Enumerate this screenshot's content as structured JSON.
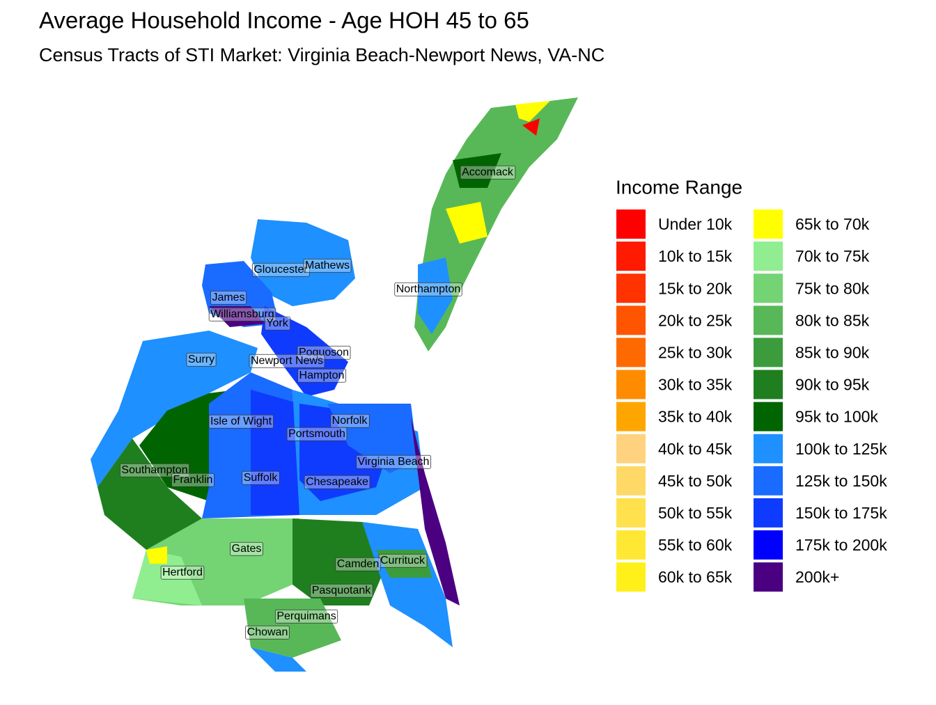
{
  "title": "Average Household Income - Age HOH 45 to 65",
  "subtitle": "Census Tracts of STI Market: Virginia Beach-Newport News, VA-NC",
  "legend": {
    "title": "Income Range",
    "items": [
      {
        "label": "Under 10k",
        "color": "#ff0000"
      },
      {
        "label": "10k to 15k",
        "color": "#ff1a00"
      },
      {
        "label": "15k to 20k",
        "color": "#ff3300"
      },
      {
        "label": "20k to 25k",
        "color": "#ff5500"
      },
      {
        "label": "25k to 30k",
        "color": "#ff6a00"
      },
      {
        "label": "30k to 35k",
        "color": "#ff8c00"
      },
      {
        "label": "35k to 40k",
        "color": "#ffa500"
      },
      {
        "label": "40k to 45k",
        "color": "#ffd27f"
      },
      {
        "label": "45k to 50k",
        "color": "#ffd966"
      },
      {
        "label": "50k to 55k",
        "color": "#ffe14d"
      },
      {
        "label": "55k to 60k",
        "color": "#ffe833"
      },
      {
        "label": "60k to 65k",
        "color": "#fff01a"
      },
      {
        "label": "65k to 70k",
        "color": "#ffff00"
      },
      {
        "label": "70k to 75k",
        "color": "#90ee90"
      },
      {
        "label": "75k to 80k",
        "color": "#74d474"
      },
      {
        "label": "80k to 85k",
        "color": "#58b858"
      },
      {
        "label": "85k to 90k",
        "color": "#3c9c3c"
      },
      {
        "label": "90k to 95k",
        "color": "#1f7f1f"
      },
      {
        "label": "95k to 100k",
        "color": "#006400"
      },
      {
        "label": "100k to 125k",
        "color": "#1e90ff"
      },
      {
        "label": "125k to 150k",
        "color": "#1a6bff"
      },
      {
        "label": "150k to 175k",
        "color": "#0f3bff"
      },
      {
        "label": "175k to 200k",
        "color": "#0000ff"
      },
      {
        "label": "200k+",
        "color": "#4b0082"
      }
    ]
  },
  "counties": [
    {
      "label": "Accomack"
    },
    {
      "label": "Gloucester"
    },
    {
      "label": "Mathews"
    },
    {
      "label": "Northampton"
    },
    {
      "label": "James"
    },
    {
      "label": "Williamsburg"
    },
    {
      "label": "York"
    },
    {
      "label": "Poquoson"
    },
    {
      "label": "Surry"
    },
    {
      "label": "Newport News"
    },
    {
      "label": "Hampton"
    },
    {
      "label": "Isle of Wight"
    },
    {
      "label": "Norfolk"
    },
    {
      "label": "Portsmouth"
    },
    {
      "label": "Virginia Beach"
    },
    {
      "label": "Southampton"
    },
    {
      "label": "Franklin"
    },
    {
      "label": "Suffolk"
    },
    {
      "label": "Chesapeake"
    },
    {
      "label": "Gates"
    },
    {
      "label": "Currituck"
    },
    {
      "label": "Camden"
    },
    {
      "label": "Hertford"
    },
    {
      "label": "Pasquotank"
    },
    {
      "label": "Perquimans"
    },
    {
      "label": "Chowan"
    }
  ]
}
